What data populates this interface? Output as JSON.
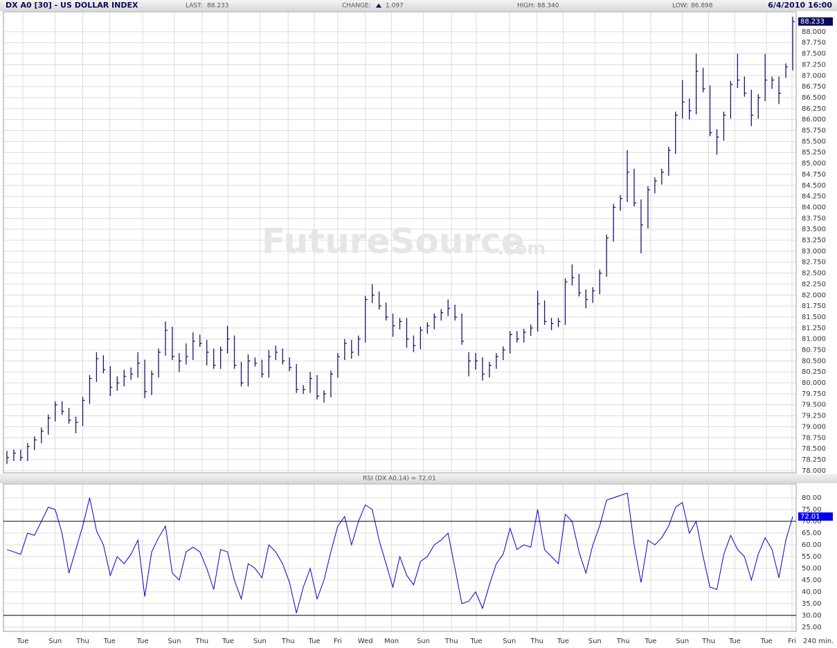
{
  "chart_data": [
    {
      "type": "ohlc",
      "title": "DX A0 [30] - US DOLLAR INDEX",
      "stats": [
        {
          "label": "LAST:",
          "value": "88.233"
        },
        {
          "label": "CHANGE:",
          "value": "1.097"
        },
        {
          "label": "HIGH:",
          "value": "88.340"
        },
        {
          "label": "LOW:",
          "value": "86.898"
        }
      ],
      "timestamp": "6/4/2010 16:00",
      "watermark": "FutureSource",
      "watermark_suffix": ".com",
      "color": "#14146e",
      "tag_color": "#0a0a5a",
      "grid": true,
      "xlim": [
        0,
        115
      ],
      "ylim": [
        77.95,
        88.44
      ],
      "yticks": [
        {
          "value": 78,
          "label": "78.000"
        },
        {
          "value": 78.25,
          "label": "78.250"
        },
        {
          "value": 78.5,
          "label": "78.500"
        },
        {
          "value": 78.75,
          "label": "78.750"
        },
        {
          "value": 79,
          "label": "79.000"
        },
        {
          "value": 79.25,
          "label": "79.250"
        },
        {
          "value": 79.5,
          "label": "79.500"
        },
        {
          "value": 79.75,
          "label": "79.750"
        },
        {
          "value": 80,
          "label": "80.000"
        },
        {
          "value": 80.25,
          "label": "80.250"
        },
        {
          "value": 80.5,
          "label": "80.500"
        },
        {
          "value": 80.75,
          "label": "80.750"
        },
        {
          "value": 81,
          "label": "81.000"
        },
        {
          "value": 81.25,
          "label": "81.250"
        },
        {
          "value": 81.5,
          "label": "81.500"
        },
        {
          "value": 81.75,
          "label": "81.750"
        },
        {
          "value": 82,
          "label": "82.000"
        },
        {
          "value": 82.25,
          "label": "82.250"
        },
        {
          "value": 82.5,
          "label": "82.500"
        },
        {
          "value": 82.75,
          "label": "82.750"
        },
        {
          "value": 83,
          "label": "83.000"
        },
        {
          "value": 83.25,
          "label": "83.250"
        },
        {
          "value": 83.5,
          "label": "83.500"
        },
        {
          "value": 83.75,
          "label": "83.750"
        },
        {
          "value": 84,
          "label": "84.000"
        },
        {
          "value": 84.25,
          "label": "84.250"
        },
        {
          "value": 84.5,
          "label": "84.500"
        },
        {
          "value": 84.75,
          "label": "84.750"
        },
        {
          "value": 85,
          "label": "85.000"
        },
        {
          "value": 85.25,
          "label": "85.250"
        },
        {
          "value": 85.5,
          "label": "85.500"
        },
        {
          "value": 85.75,
          "label": "85.750"
        },
        {
          "value": 86,
          "label": "86.000"
        },
        {
          "value": 86.25,
          "label": "86.250"
        },
        {
          "value": 86.5,
          "label": "86.500"
        },
        {
          "value": 86.75,
          "label": "86.750"
        },
        {
          "value": 87,
          "label": "87.000"
        },
        {
          "value": 87.25,
          "label": "87.250"
        },
        {
          "value": 87.5,
          "label": "87.500"
        },
        {
          "value": 87.75,
          "label": "87.750"
        },
        {
          "value": 88,
          "label": "88.000"
        }
      ],
      "high": [
        78.45,
        78.48,
        78.48,
        78.63,
        78.78,
        78.98,
        79.28,
        79.58,
        79.58,
        79.43,
        79.23,
        79.68,
        80.18,
        80.7,
        80.63,
        80.38,
        80.15,
        80.3,
        80.35,
        80.7,
        80.53,
        80.28,
        80.78,
        81.4,
        81.28,
        80.68,
        80.9,
        81.15,
        81.1,
        80.98,
        80.78,
        80.83,
        81.3,
        81.08,
        80.48,
        80.65,
        80.58,
        80.53,
        80.75,
        80.85,
        80.78,
        80.58,
        80.43,
        79.95,
        80.25,
        80.18,
        79.83,
        80.28,
        80.68,
        81.0,
        80.98,
        81.08,
        81.98,
        82.25,
        82.08,
        81.83,
        81.58,
        81.48,
        81.48,
        81.08,
        81.28,
        81.38,
        81.58,
        81.68,
        81.9,
        81.78,
        81.58,
        80.7,
        80.68,
        80.58,
        80.48,
        80.68,
        80.83,
        81.18,
        81.18,
        81.23,
        81.33,
        82.1,
        81.88,
        81.48,
        81.48,
        82.38,
        82.7,
        82.48,
        82.13,
        82.18,
        82.58,
        83.38,
        84.08,
        84.28,
        85.3,
        84.88,
        84.18,
        84.48,
        84.68,
        84.88,
        85.38,
        86.18,
        86.9,
        86.48,
        87.5,
        87.18,
        86.78,
        85.78,
        86.18,
        86.88,
        87.5,
        86.98,
        86.68,
        86.58,
        87.5,
        86.98,
        86.98,
        87.28,
        88.34
      ],
      "low": [
        78.15,
        78.22,
        78.22,
        78.22,
        78.47,
        78.62,
        78.82,
        79.12,
        79.27,
        79.07,
        78.85,
        79.02,
        79.52,
        80.02,
        80.22,
        79.7,
        79.82,
        79.92,
        80.07,
        80.12,
        79.65,
        79.72,
        80.12,
        80.62,
        80.52,
        80.25,
        80.42,
        80.52,
        80.82,
        80.4,
        80.32,
        80.32,
        80.67,
        80.32,
        79.92,
        79.92,
        80.37,
        80.12,
        80.12,
        80.52,
        80.42,
        80.27,
        79.77,
        79.75,
        79.77,
        79.62,
        79.55,
        79.67,
        80.12,
        80.52,
        80.55,
        80.62,
        80.92,
        81.82,
        81.67,
        81.42,
        81.05,
        81.22,
        80.8,
        80.7,
        80.77,
        81.12,
        81.22,
        81.42,
        81.52,
        81.42,
        80.87,
        80.15,
        80.3,
        80.05,
        80.12,
        80.32,
        80.52,
        80.67,
        80.92,
        80.92,
        81.07,
        81.17,
        81.32,
        81.2,
        81.27,
        81.32,
        82.22,
        81.97,
        81.7,
        81.82,
        82.02,
        82.42,
        83.22,
        83.92,
        84.12,
        84.02,
        82.95,
        83.52,
        84.32,
        84.52,
        84.72,
        85.22,
        86.02,
        86.0,
        86.12,
        86.62,
        85.62,
        85.2,
        85.52,
        86.02,
        86.72,
        86.52,
        85.85,
        86.02,
        86.42,
        86.7,
        86.35,
        86.95,
        87.12
      ],
      "close": [
        78.3,
        78.4,
        78.3,
        78.55,
        78.7,
        78.9,
        79.2,
        79.5,
        79.35,
        79.15,
        79.1,
        79.6,
        80.1,
        80.55,
        80.3,
        79.9,
        80.0,
        80.15,
        80.2,
        80.45,
        79.8,
        80.2,
        80.7,
        81.2,
        80.6,
        80.5,
        80.6,
        80.95,
        80.9,
        80.7,
        80.4,
        80.75,
        81.0,
        80.4,
        80.0,
        80.5,
        80.45,
        80.2,
        80.6,
        80.7,
        80.5,
        80.35,
        79.85,
        79.85,
        80.1,
        79.7,
        79.75,
        80.2,
        80.6,
        80.9,
        80.7,
        81.0,
        81.9,
        82.0,
        81.75,
        81.5,
        81.3,
        81.4,
        81.0,
        80.85,
        81.2,
        81.3,
        81.5,
        81.6,
        81.7,
        81.5,
        80.95,
        80.5,
        80.5,
        80.2,
        80.4,
        80.6,
        80.75,
        81.1,
        81.0,
        81.15,
        81.25,
        81.8,
        81.4,
        81.35,
        81.4,
        82.3,
        82.4,
        82.05,
        81.9,
        82.1,
        82.5,
        83.3,
        84.0,
        84.2,
        84.8,
        84.1,
        83.6,
        84.4,
        84.6,
        84.8,
        85.3,
        86.1,
        86.4,
        86.2,
        87.1,
        86.7,
        85.7,
        85.6,
        86.1,
        86.8,
        86.9,
        86.6,
        86.1,
        86.5,
        86.9,
        86.9,
        86.6,
        87.2,
        88.233
      ]
    },
    {
      "type": "line",
      "title": "RSI (DX A0,14) = 72.01",
      "interval": "240 min.",
      "color": "#0000cc",
      "tag_color": "#0000ee",
      "level_color": "#000000",
      "grid": true,
      "xlim": [
        0,
        115
      ],
      "ylim": [
        23.2,
        85.9
      ],
      "levels": [
        70,
        30
      ],
      "yticks": [
        {
          "value": 25,
          "label": "25.00"
        },
        {
          "value": 30,
          "label": "30.00"
        },
        {
          "value": 35,
          "label": "35.00"
        },
        {
          "value": 40,
          "label": "40.00"
        },
        {
          "value": 45,
          "label": "45.00"
        },
        {
          "value": 50,
          "label": "50.00"
        },
        {
          "value": 55,
          "label": "55.00"
        },
        {
          "value": 60,
          "label": "60.00"
        },
        {
          "value": 65,
          "label": "65.00"
        },
        {
          "value": 70,
          "label": "70.00"
        },
        {
          "value": 75,
          "label": "75.00"
        },
        {
          "value": 80,
          "label": "80.00"
        }
      ],
      "xticks": [
        {
          "value": 2.8,
          "label": "Tue"
        },
        {
          "value": 7.5,
          "label": "Sun"
        },
        {
          "value": 11.5,
          "label": "Thu"
        },
        {
          "value": 15.4,
          "label": "Tue"
        },
        {
          "value": 20.2,
          "label": "Tue"
        },
        {
          "value": 24.8,
          "label": "Sun"
        },
        {
          "value": 28.8,
          "label": "Thu"
        },
        {
          "value": 32.6,
          "label": "Tue"
        },
        {
          "value": 37.2,
          "label": "Sun"
        },
        {
          "value": 41.3,
          "label": "Thu"
        },
        {
          "value": 45.1,
          "label": "Tue"
        },
        {
          "value": 48.5,
          "label": "Fri"
        },
        {
          "value": 52.5,
          "label": "Wed"
        },
        {
          "value": 56.3,
          "label": "Mon"
        },
        {
          "value": 60.9,
          "label": "Sun"
        },
        {
          "value": 65,
          "label": "Thu"
        },
        {
          "value": 68.6,
          "label": "Tue"
        },
        {
          "value": 73.4,
          "label": "Sun"
        },
        {
          "value": 77.4,
          "label": "Thu"
        },
        {
          "value": 81.2,
          "label": "Tue"
        },
        {
          "value": 85.8,
          "label": "Sun"
        },
        {
          "value": 89.9,
          "label": "Thu"
        },
        {
          "value": 93.9,
          "label": "Tue"
        },
        {
          "value": 98.5,
          "label": "Sun"
        },
        {
          "value": 102.3,
          "label": "Thu"
        },
        {
          "value": 106.1,
          "label": "Tue"
        },
        {
          "value": 110.7,
          "label": "Tue"
        },
        {
          "value": 114.4,
          "label": "Fri"
        }
      ],
      "values": [
        58,
        57,
        56,
        65,
        64,
        70,
        76,
        75,
        65,
        48,
        58,
        68,
        80,
        66,
        60,
        47,
        55,
        52,
        56,
        62,
        38,
        57,
        63,
        68,
        48,
        45,
        57,
        59,
        57,
        50,
        41,
        58,
        57,
        45,
        37,
        52,
        50,
        46,
        60,
        57,
        52,
        44,
        31,
        42,
        50,
        37,
        45,
        57,
        68,
        72,
        60,
        70,
        77,
        75,
        62,
        52,
        42,
        55,
        47,
        43,
        53,
        55,
        60,
        62,
        65,
        50,
        35,
        36,
        40,
        33,
        43,
        52,
        56,
        67,
        58,
        60,
        59,
        75,
        58,
        55,
        52,
        73,
        70,
        57,
        48,
        60,
        68,
        79,
        80,
        81,
        82,
        60,
        44,
        62,
        60,
        63,
        68,
        76,
        78,
        65,
        70,
        55,
        42,
        41,
        56,
        64,
        58,
        55,
        45,
        56,
        63,
        58,
        46,
        62,
        72.01
      ]
    }
  ]
}
